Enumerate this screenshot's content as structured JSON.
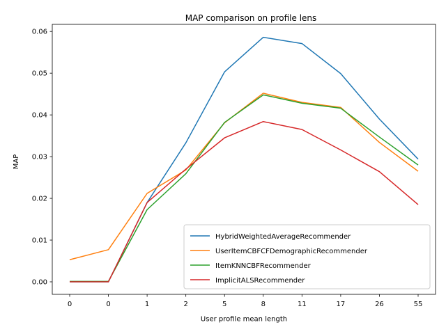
{
  "chart_data": {
    "type": "line",
    "title": "MAP comparison on profile lens",
    "xlabel": "User profile mean length",
    "ylabel": "MAP",
    "categories": [
      "0",
      "0",
      "1",
      "2",
      "5",
      "8",
      "11",
      "17",
      "26",
      "55"
    ],
    "ylim": [
      -0.003,
      0.0617
    ],
    "yticks": [
      0.0,
      0.01,
      0.02,
      0.03,
      0.04,
      0.05,
      0.06
    ],
    "ytick_labels": [
      "0.00",
      "0.01",
      "0.02",
      "0.03",
      "0.04",
      "0.05",
      "0.06"
    ],
    "grid": false,
    "legend_position": "lower-right",
    "series": [
      {
        "name": "HybridWeightedAverageRecommender",
        "color": "#1f77b4",
        "values": [
          0.0,
          0.0,
          0.019,
          0.0333,
          0.0503,
          0.0586,
          0.0571,
          0.0499,
          0.039,
          0.0294
        ]
      },
      {
        "name": "UserItemCBFCFDemographicRecommender",
        "color": "#ff7f0e",
        "values": [
          0.0053,
          0.0077,
          0.0212,
          0.0268,
          0.0381,
          0.0452,
          0.043,
          0.0418,
          0.0334,
          0.0265
        ]
      },
      {
        "name": "ItemKNNCBFRecommender",
        "color": "#2ca02c",
        "values": [
          0.0001,
          0.0001,
          0.0173,
          0.0259,
          0.0382,
          0.0448,
          0.0428,
          0.0416,
          0.0347,
          0.028
        ]
      },
      {
        "name": "ImplicitALSRecommender",
        "color": "#d62728",
        "values": [
          0.0,
          0.0,
          0.019,
          0.027,
          0.0345,
          0.0384,
          0.0365,
          0.0316,
          0.0264,
          0.0185
        ]
      }
    ]
  }
}
